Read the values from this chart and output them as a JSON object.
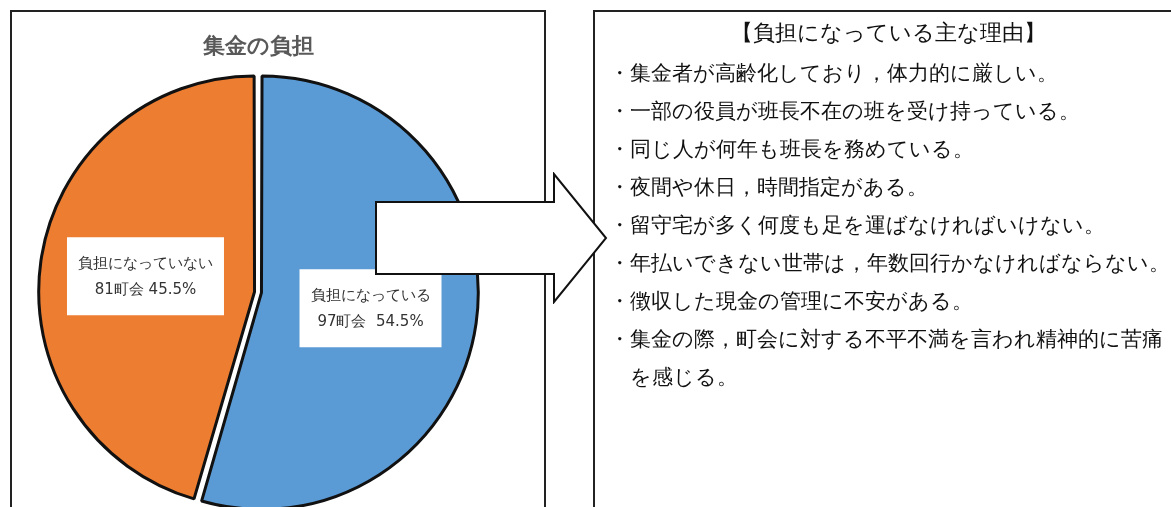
{
  "chart_data": [
    {
      "type": "pie",
      "title": "集金の負担",
      "categories": [
        "負担になっている",
        "負担になっていない"
      ],
      "values": [
        97,
        81
      ],
      "value_labels": [
        "97町会  54.5%",
        "81町会 45.5%"
      ],
      "colors": [
        "#5b9bd5",
        "#ed7d31"
      ],
      "legend": false
    },
    {
      "type": "other",
      "title": "【負担になっている主な理由】",
      "annotations": [
        "・集金者が高齢化しており，体力的に厳しい。",
        "・一部の役員が班長不在の班を受け持っている。",
        "・同じ人が何年も班長を務めている。",
        "・夜間や休日，時間指定がある。",
        "・留守宅が多く何度も足を運ばなければいけない。",
        "・年払いできない世帯は，年数回行かなければならない。",
        "・徴収した現金の管理に不安がある。",
        "・集金の際，町会に対する不平不満を言われ精神的に苦痛を感じる。"
      ]
    }
  ]
}
